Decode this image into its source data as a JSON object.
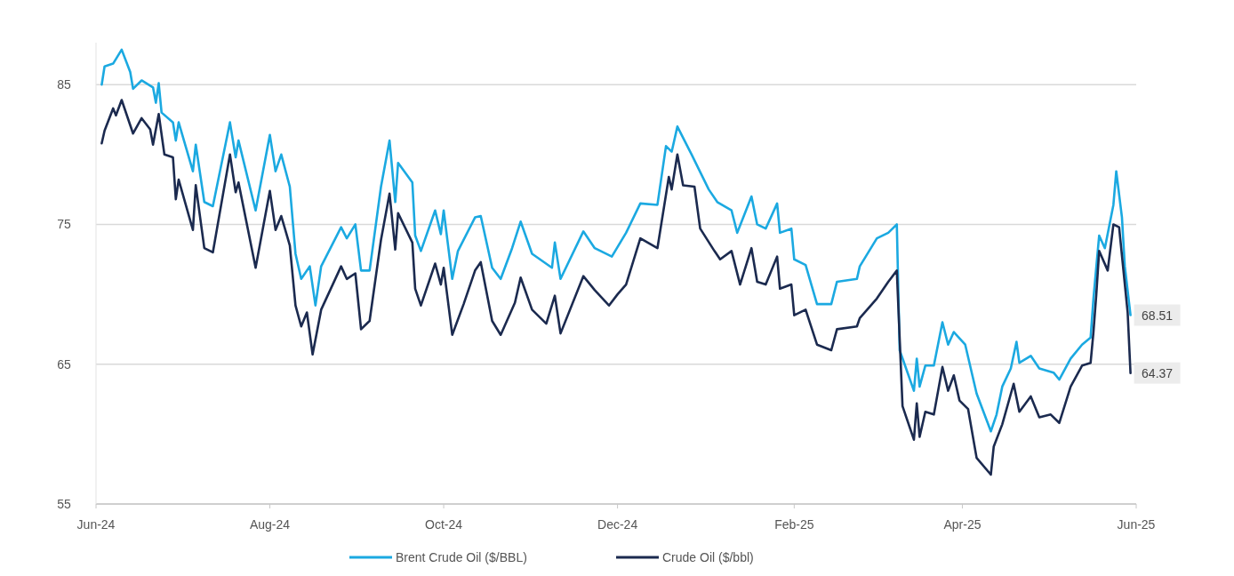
{
  "chart_data": {
    "type": "line",
    "xlim": [
      "2024-06-01",
      "2025-06-01"
    ],
    "xticks": [
      {
        "value": "2024-06-01",
        "label": "Jun-24"
      },
      {
        "value": "2024-08-01",
        "label": "Aug-24"
      },
      {
        "value": "2024-10-01",
        "label": "Oct-24"
      },
      {
        "value": "2024-12-01",
        "label": "Dec-24"
      },
      {
        "value": "2025-02-01",
        "label": "Feb-25"
      },
      {
        "value": "2025-04-01",
        "label": "Apr-25"
      },
      {
        "value": "2025-06-01",
        "label": "Jun-25"
      }
    ],
    "ylim": [
      55,
      88
    ],
    "yticks": [
      55,
      65,
      75,
      85
    ],
    "grid": "y",
    "legend": "bottom",
    "line_style": "solid",
    "annotations": [
      {
        "text": "68.51",
        "x": "2025-05-30",
        "y": 68.51
      },
      {
        "text": "64.37",
        "x": "2025-05-30",
        "y": 64.37
      }
    ],
    "series": [
      {
        "name": "Brent Crude Oil ($/BBL)",
        "color": "#1ba9e1",
        "x": [
          "2024-06-03",
          "2024-06-04",
          "2024-06-07",
          "2024-06-10",
          "2024-06-13",
          "2024-06-14",
          "2024-06-17",
          "2024-06-21",
          "2024-06-22",
          "2024-06-23",
          "2024-06-24",
          "2024-06-28",
          "2024-06-29",
          "2024-06-30",
          "2024-07-05",
          "2024-07-06",
          "2024-07-09",
          "2024-07-12",
          "2024-07-18",
          "2024-07-20",
          "2024-07-21",
          "2024-07-27",
          "2024-08-01",
          "2024-08-03",
          "2024-08-05",
          "2024-08-08",
          "2024-08-10",
          "2024-08-12",
          "2024-08-15",
          "2024-08-17",
          "2024-08-19",
          "2024-08-26",
          "2024-08-28",
          "2024-08-31",
          "2024-09-02",
          "2024-09-05",
          "2024-09-09",
          "2024-09-12",
          "2024-09-14",
          "2024-09-15",
          "2024-09-20",
          "2024-09-21",
          "2024-09-23",
          "2024-09-28",
          "2024-09-30",
          "2024-10-01",
          "2024-10-04",
          "2024-10-06",
          "2024-10-12",
          "2024-10-14",
          "2024-10-18",
          "2024-10-21",
          "2024-10-25",
          "2024-10-28",
          "2024-11-01",
          "2024-11-08",
          "2024-11-09",
          "2024-11-11",
          "2024-11-19",
          "2024-11-23",
          "2024-11-29",
          "2024-12-04",
          "2024-12-09",
          "2024-12-15",
          "2024-12-18",
          "2024-12-20",
          "2024-12-22",
          "2024-12-27",
          "2025-01-02",
          "2025-01-05",
          "2025-01-10",
          "2025-01-12",
          "2025-01-17",
          "2025-01-19",
          "2025-01-22",
          "2025-01-26",
          "2025-01-27",
          "2025-01-31",
          "2025-02-01",
          "2025-02-05",
          "2025-02-09",
          "2025-02-14",
          "2025-02-16",
          "2025-02-23",
          "2025-02-24",
          "2025-03-02",
          "2025-03-06",
          "2025-03-09",
          "2025-03-10",
          "2025-03-15",
          "2025-03-16",
          "2025-03-17",
          "2025-03-19",
          "2025-03-22",
          "2025-03-25",
          "2025-03-27",
          "2025-03-29",
          "2025-04-02",
          "2025-04-06",
          "2025-04-11",
          "2025-04-13",
          "2025-04-15",
          "2025-04-18",
          "2025-04-20",
          "2025-04-21",
          "2025-04-25",
          "2025-04-28",
          "2025-05-03",
          "2025-05-05",
          "2025-05-09",
          "2025-05-13",
          "2025-05-16",
          "2025-05-17",
          "2025-05-19",
          "2025-05-21",
          "2025-05-24",
          "2025-05-25",
          "2025-05-27",
          "2025-05-28",
          "2025-05-30"
        ],
        "values": [
          85.0,
          86.3,
          86.5,
          87.5,
          85.9,
          84.7,
          85.3,
          84.8,
          83.7,
          85.1,
          83.0,
          82.3,
          81.0,
          82.3,
          78.8,
          80.7,
          76.6,
          76.3,
          82.3,
          79.8,
          81.0,
          76.0,
          81.4,
          78.8,
          80.0,
          77.7,
          72.9,
          71.1,
          72.0,
          69.2,
          72.0,
          74.8,
          74.0,
          75.0,
          71.7,
          71.7,
          77.7,
          81.0,
          76.6,
          79.4,
          78.0,
          74.2,
          73.1,
          76.0,
          74.3,
          76.0,
          71.1,
          73.1,
          75.5,
          75.6,
          71.9,
          71.1,
          73.3,
          75.2,
          72.9,
          71.9,
          73.7,
          71.1,
          74.5,
          73.3,
          72.7,
          74.4,
          76.5,
          76.4,
          80.6,
          80.2,
          82.0,
          80.0,
          77.5,
          76.6,
          76.0,
          74.4,
          77.0,
          75.0,
          74.7,
          76.5,
          74.4,
          74.7,
          72.5,
          72.1,
          69.3,
          69.3,
          70.9,
          71.1,
          72.0,
          74.0,
          74.4,
          75.0,
          66.0,
          63.1,
          65.4,
          63.4,
          64.9,
          64.9,
          68.0,
          66.4,
          67.3,
          66.4,
          62.9,
          60.2,
          61.4,
          63.4,
          64.7,
          66.6,
          65.1,
          65.6,
          64.7,
          64.4,
          63.9,
          65.4,
          66.4,
          66.9,
          69.7,
          74.2,
          73.3,
          76.4,
          78.8,
          75.5,
          72.0,
          68.51
        ]
      },
      {
        "name": "Crude Oil ($/bbl)",
        "color": "#1b2a4f",
        "x": [
          "2024-06-03",
          "2024-06-04",
          "2024-06-07",
          "2024-06-08",
          "2024-06-10",
          "2024-06-14",
          "2024-06-17",
          "2024-06-20",
          "2024-06-21",
          "2024-06-23",
          "2024-06-25",
          "2024-06-28",
          "2024-06-29",
          "2024-06-30",
          "2024-07-05",
          "2024-07-06",
          "2024-07-09",
          "2024-07-12",
          "2024-07-18",
          "2024-07-20",
          "2024-07-21",
          "2024-07-27",
          "2024-08-01",
          "2024-08-03",
          "2024-08-05",
          "2024-08-08",
          "2024-08-10",
          "2024-08-12",
          "2024-08-14",
          "2024-08-16",
          "2024-08-19",
          "2024-08-26",
          "2024-08-28",
          "2024-08-31",
          "2024-09-02",
          "2024-09-05",
          "2024-09-09",
          "2024-09-12",
          "2024-09-14",
          "2024-09-15",
          "2024-09-20",
          "2024-09-21",
          "2024-09-23",
          "2024-09-28",
          "2024-09-30",
          "2024-10-01",
          "2024-10-04",
          "2024-10-08",
          "2024-10-12",
          "2024-10-14",
          "2024-10-18",
          "2024-10-21",
          "2024-10-26",
          "2024-10-28",
          "2024-11-01",
          "2024-11-06",
          "2024-11-09",
          "2024-11-11",
          "2024-11-19",
          "2024-11-23",
          "2024-11-28",
          "2024-12-01",
          "2024-12-04",
          "2024-12-09",
          "2024-12-15",
          "2024-12-19",
          "2024-12-20",
          "2024-12-22",
          "2024-12-24",
          "2024-12-28",
          "2024-12-30",
          "2025-01-04",
          "2025-01-06",
          "2025-01-10",
          "2025-01-13",
          "2025-01-17",
          "2025-01-19",
          "2025-01-22",
          "2025-01-26",
          "2025-01-27",
          "2025-01-31",
          "2025-02-01",
          "2025-02-05",
          "2025-02-09",
          "2025-02-14",
          "2025-02-16",
          "2025-02-23",
          "2025-02-24",
          "2025-03-02",
          "2025-03-06",
          "2025-03-09",
          "2025-03-11",
          "2025-03-15",
          "2025-03-16",
          "2025-03-17",
          "2025-03-19",
          "2025-03-22",
          "2025-03-25",
          "2025-03-27",
          "2025-03-29",
          "2025-03-31",
          "2025-04-03",
          "2025-04-06",
          "2025-04-11",
          "2025-04-12",
          "2025-04-15",
          "2025-04-19",
          "2025-04-21",
          "2025-04-25",
          "2025-04-28",
          "2025-05-02",
          "2025-05-05",
          "2025-05-09",
          "2025-05-13",
          "2025-05-16",
          "2025-05-17",
          "2025-05-18",
          "2025-05-19",
          "2025-05-22",
          "2025-05-24",
          "2025-05-26",
          "2025-05-29",
          "2025-05-30"
        ],
        "values": [
          80.8,
          81.7,
          83.3,
          82.8,
          83.9,
          81.5,
          82.6,
          81.8,
          80.7,
          82.9,
          80.0,
          79.8,
          76.8,
          78.2,
          74.6,
          77.8,
          73.3,
          73.0,
          80.0,
          77.3,
          78.0,
          71.9,
          77.4,
          74.6,
          75.6,
          73.5,
          69.2,
          67.7,
          68.7,
          65.7,
          68.9,
          72.0,
          71.1,
          71.5,
          67.5,
          68.1,
          73.9,
          77.2,
          73.2,
          75.8,
          73.7,
          70.4,
          69.2,
          72.2,
          70.7,
          71.9,
          67.1,
          69.3,
          71.7,
          72.3,
          68.1,
          67.1,
          69.4,
          71.2,
          68.9,
          67.9,
          69.9,
          67.2,
          71.3,
          70.3,
          69.2,
          70.0,
          70.7,
          74.0,
          73.3,
          78.4,
          77.5,
          80.0,
          77.8,
          77.7,
          74.7,
          73.1,
          72.5,
          73.1,
          70.7,
          73.3,
          70.9,
          70.7,
          72.7,
          70.4,
          70.7,
          68.5,
          68.9,
          66.4,
          66.0,
          67.5,
          67.7,
          68.3,
          69.7,
          70.9,
          71.7,
          62.0,
          59.6,
          62.2,
          59.8,
          61.6,
          61.4,
          64.8,
          63.1,
          64.2,
          62.4,
          61.8,
          58.3,
          57.1,
          59.1,
          60.7,
          63.6,
          61.6,
          62.7,
          61.2,
          61.4,
          60.8,
          63.4,
          64.9,
          65.1,
          67.3,
          70.0,
          73.1,
          71.7,
          75.0,
          74.8,
          68.7,
          64.37
        ]
      }
    ]
  }
}
